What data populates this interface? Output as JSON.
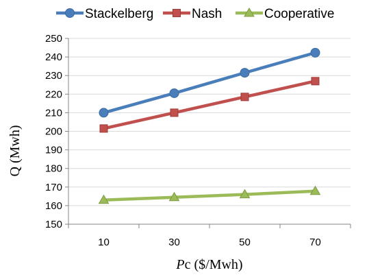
{
  "chart_data": {
    "type": "line",
    "title": "",
    "xlabel": "Pc ($/Mwh)",
    "xlabel_parts": {
      "italic": "P",
      "rest": "c ($/Mwh)"
    },
    "ylabel": "Q (Mwh)",
    "categories": [
      "10",
      "30",
      "50",
      "70"
    ],
    "ylim": [
      150,
      250
    ],
    "yticks": [
      150,
      160,
      170,
      180,
      190,
      200,
      210,
      220,
      230,
      240,
      250
    ],
    "grid": true,
    "legend_position": "top",
    "series": [
      {
        "name": "Stackelberg",
        "color": "#4A7EBB",
        "marker": "circle",
        "values": [
          210,
          220.5,
          231.5,
          242.3
        ]
      },
      {
        "name": "Nash",
        "color": "#C0504D",
        "marker": "square",
        "values": [
          201.5,
          210,
          218.5,
          227
        ]
      },
      {
        "name": "Cooperative",
        "color": "#9BBB59",
        "marker": "triangle",
        "values": [
          163,
          164.5,
          166,
          167.8
        ]
      }
    ]
  }
}
